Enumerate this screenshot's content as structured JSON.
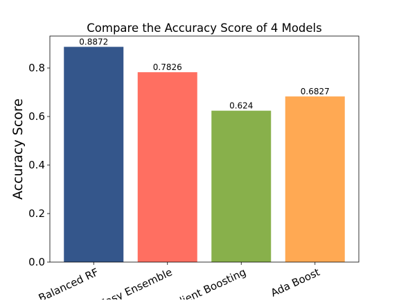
{
  "chart_data": {
    "type": "bar",
    "title": "Compare the Accuracy Score of 4 Models",
    "xlabel": "",
    "ylabel": "Accuracy Score",
    "categories": [
      "Balanced RF",
      "Easy Ensemble",
      "Gradient Boosting",
      "Ada Boost"
    ],
    "values": [
      0.8872,
      0.7826,
      0.624,
      0.6827
    ],
    "value_labels": [
      "0.8872",
      "0.7826",
      "0.624",
      "0.6827"
    ],
    "colors": [
      "#34568B",
      "#FF6F61",
      "#88B04B",
      "#FFA953"
    ],
    "yticks": [
      "0.0",
      "0.2",
      "0.4",
      "0.6",
      "0.8"
    ],
    "ytick_values": [
      0,
      0.2,
      0.4,
      0.6,
      0.8
    ],
    "ylim": [
      0,
      0.9316
    ],
    "grid": false,
    "legend": false
  }
}
